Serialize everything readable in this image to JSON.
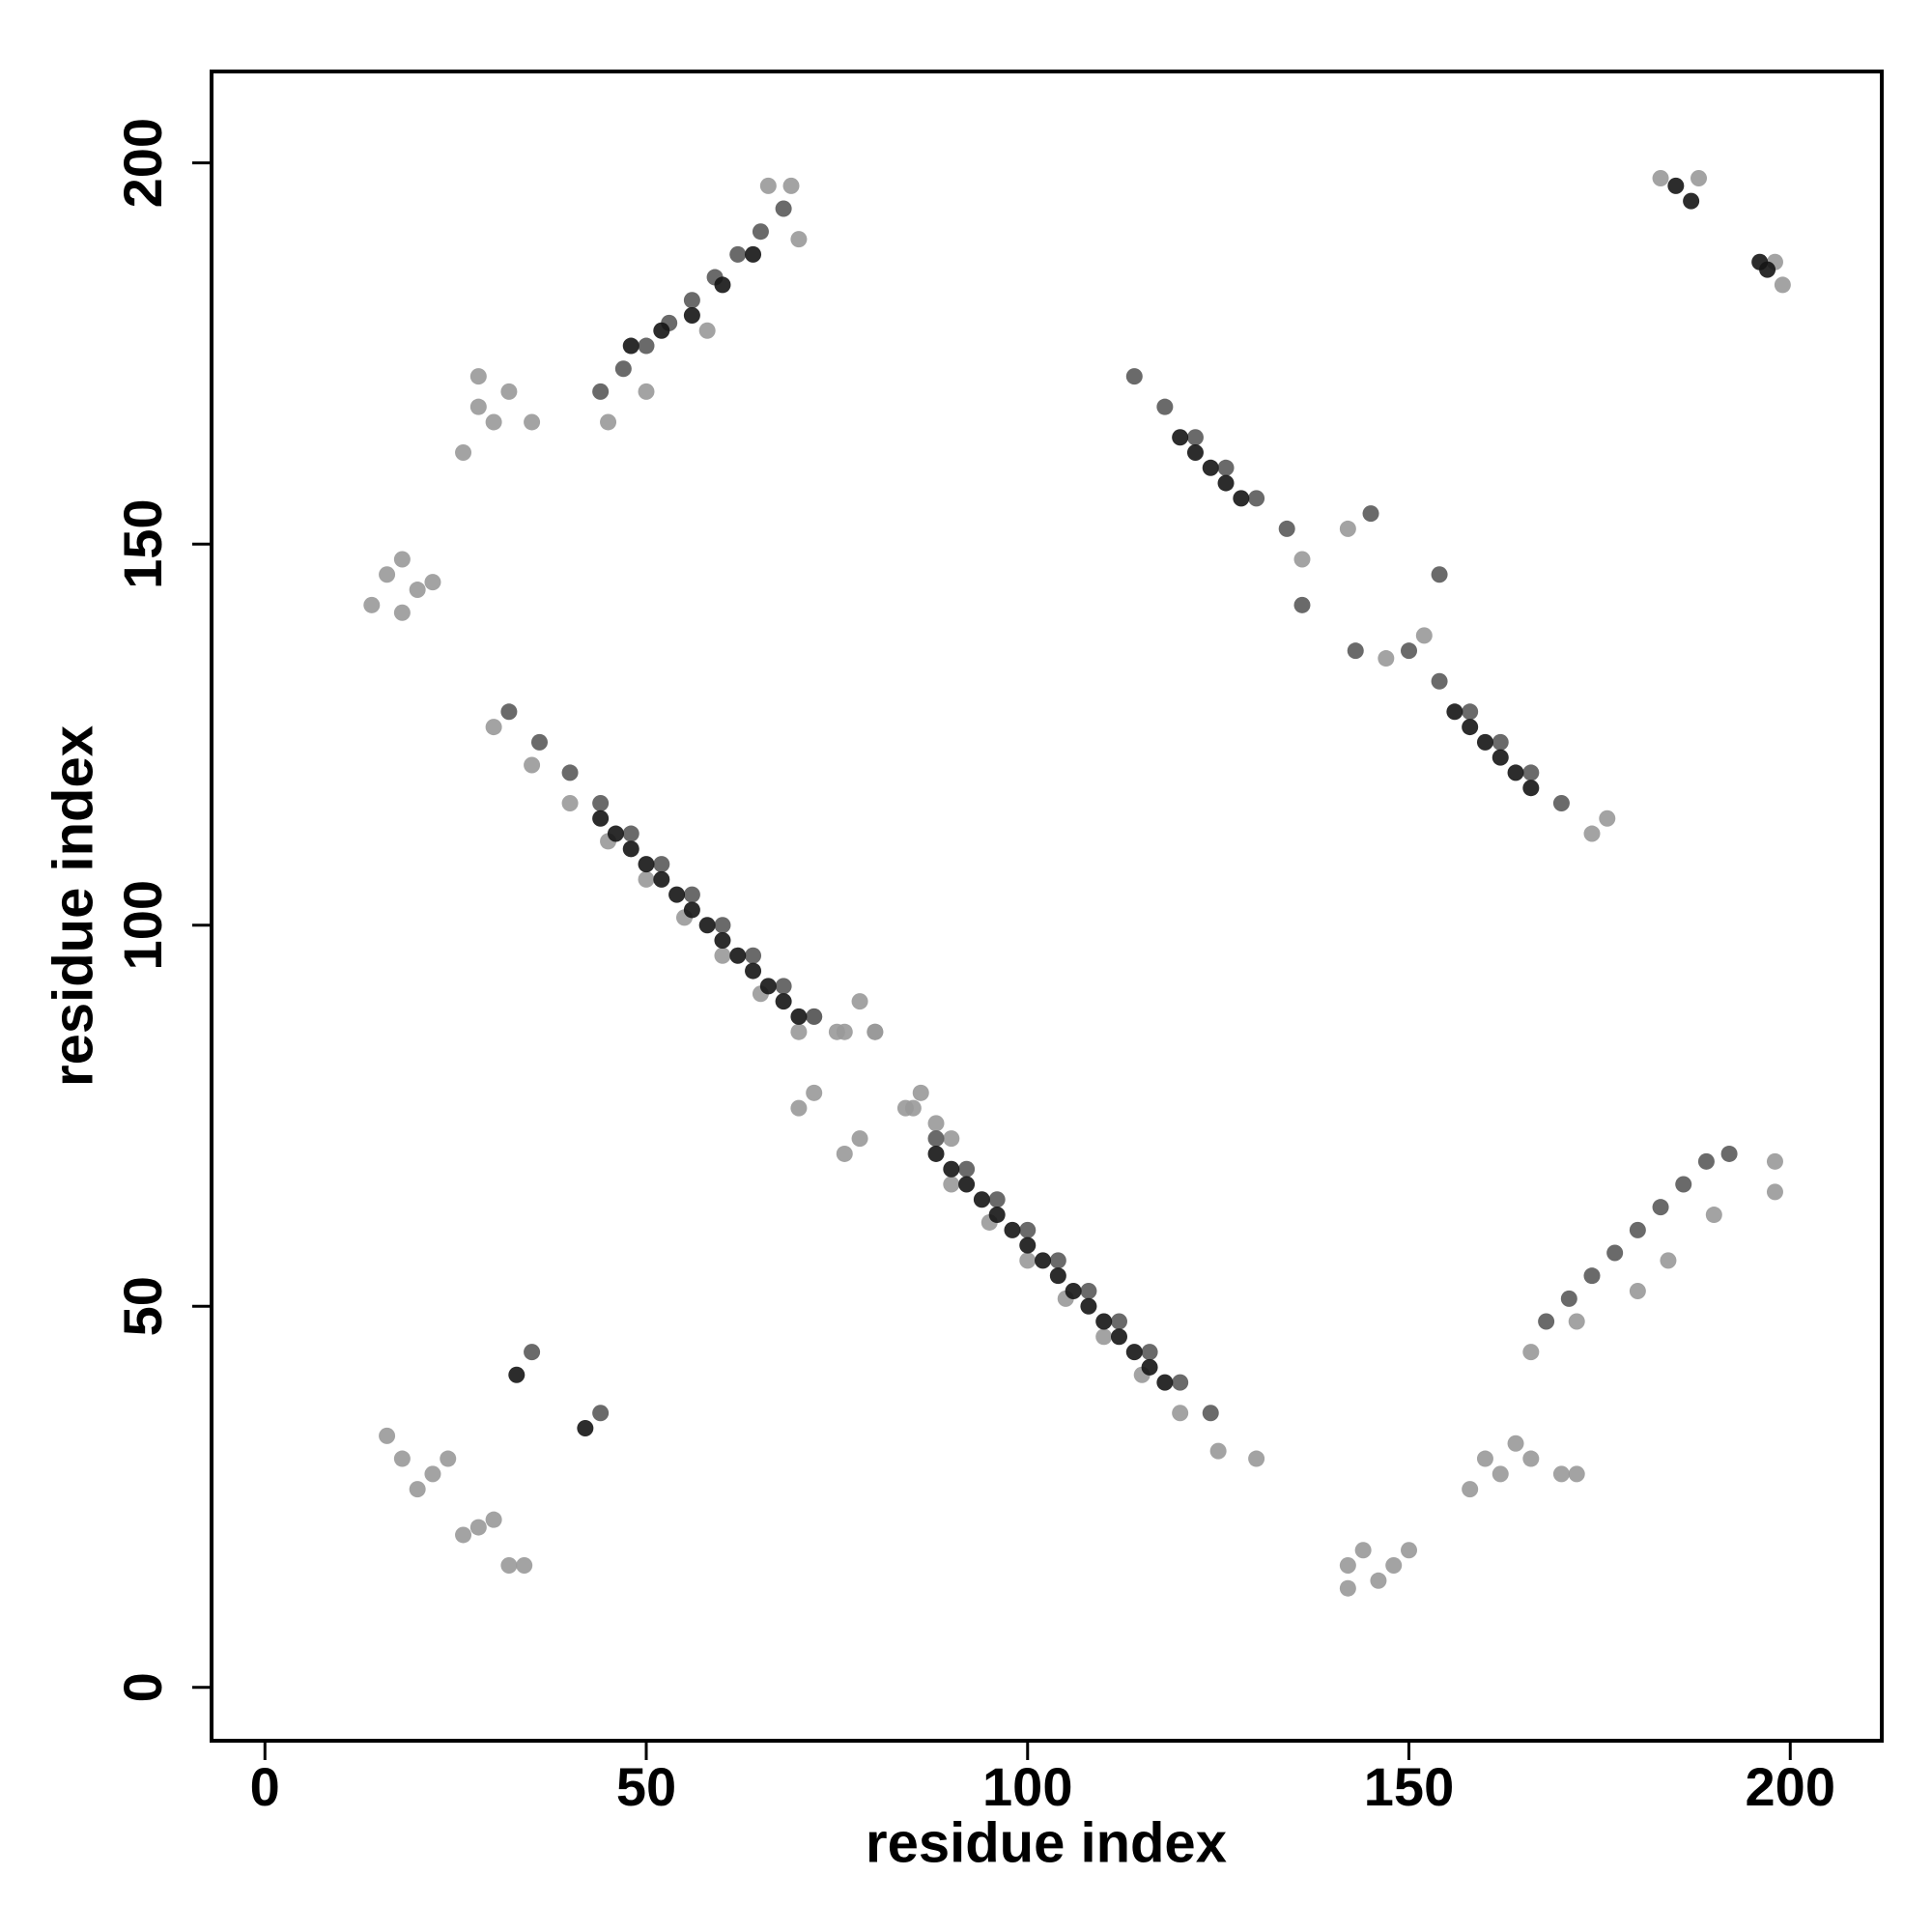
{
  "chart_data": {
    "type": "scatter",
    "xlabel": "residue index",
    "ylabel": "residue index",
    "xlim": [
      -7,
      212
    ],
    "ylim": [
      -7,
      212
    ],
    "xticks": [
      0,
      50,
      100,
      150,
      200
    ],
    "yticks": [
      0,
      50,
      100,
      150,
      200
    ],
    "series": [
      {
        "color": "#999999",
        "x": [
          30,
          35,
          40,
          45,
          50,
          55,
          60,
          65,
          70,
          75,
          80,
          85,
          90,
          95,
          100,
          105,
          110,
          115,
          120,
          125,
          130,
          14,
          16,
          18,
          20,
          18,
          22,
          26,
          28,
          30,
          32,
          35,
          28,
          16,
          18,
          20,
          22,
          24,
          26,
          28,
          30,
          32,
          34,
          142,
          144,
          146,
          148,
          150,
          142,
          158,
          160,
          162,
          164,
          166,
          170,
          172,
          70,
          72,
          76,
          78,
          84,
          86,
          88,
          90,
          72,
          76,
          78,
          80,
          136,
          142,
          152,
          147,
          174,
          176,
          45,
          50,
          58,
          66,
          69,
          70,
          166,
          172,
          180,
          190,
          198,
          198,
          184,
          183,
          188,
          198,
          199
        ],
        "values": [
          126,
          121,
          116,
          111,
          106,
          101,
          96,
          91,
          86,
          86,
          86,
          76,
          66,
          61,
          56,
          51,
          46,
          41,
          36,
          31,
          30,
          142,
          146,
          148,
          144,
          141,
          145,
          162,
          168,
          166,
          170,
          166,
          172,
          33,
          30,
          26,
          28,
          30,
          20,
          21,
          22,
          16,
          16,
          16,
          18,
          14,
          16,
          18,
          13,
          26,
          30,
          28,
          32,
          30,
          28,
          28,
          76,
          78,
          70,
          72,
          76,
          78,
          74,
          72,
          88,
          86,
          90,
          86,
          148,
          152,
          138,
          135,
          112,
          114,
          166,
          170,
          178,
          197,
          197,
          190,
          44,
          48,
          52,
          62,
          65,
          69,
          56,
          198,
          198,
          187,
          184
        ]
      },
      {
        "color": "#5a5a5a",
        "x": [
          32,
          36,
          40,
          44,
          48,
          52,
          56,
          60,
          64,
          68,
          72,
          88,
          92,
          96,
          100,
          104,
          108,
          112,
          116,
          120,
          124,
          114,
          118,
          122,
          126,
          130,
          134,
          150,
          154,
          158,
          162,
          166,
          170,
          44,
          47,
          50,
          53,
          56,
          59,
          62,
          65,
          68,
          168,
          171,
          174,
          177,
          180,
          183,
          186,
          189,
          192,
          35,
          44,
          136,
          145,
          154,
          143
        ],
        "values": [
          128,
          124,
          120,
          116,
          112,
          108,
          104,
          100,
          96,
          92,
          88,
          72,
          68,
          64,
          60,
          56,
          52,
          48,
          44,
          40,
          36,
          172,
          168,
          164,
          160,
          156,
          152,
          136,
          132,
          128,
          124,
          120,
          116,
          170,
          173,
          176,
          179,
          182,
          185,
          188,
          191,
          194,
          48,
          51,
          54,
          57,
          60,
          63,
          66,
          69,
          70,
          44,
          36,
          142,
          154,
          146,
          136
        ]
      },
      {
        "color": "#151515",
        "x": [
          44,
          46,
          48,
          50,
          52,
          54,
          56,
          58,
          60,
          62,
          64,
          66,
          68,
          70,
          88,
          90,
          92,
          94,
          96,
          98,
          100,
          102,
          104,
          106,
          108,
          110,
          112,
          114,
          116,
          118,
          120,
          122,
          124,
          126,
          128,
          156,
          158,
          160,
          162,
          164,
          166,
          48,
          52,
          56,
          60,
          64,
          185,
          187,
          196,
          197,
          33,
          42
        ],
        "values": [
          114,
          112,
          110,
          108,
          106,
          104,
          102,
          100,
          98,
          96,
          94,
          92,
          90,
          88,
          70,
          68,
          66,
          64,
          62,
          60,
          58,
          56,
          54,
          52,
          50,
          48,
          46,
          44,
          42,
          40,
          164,
          162,
          160,
          158,
          156,
          128,
          126,
          124,
          122,
          120,
          118,
          176,
          178,
          180,
          184,
          188,
          197,
          195,
          187,
          186,
          41,
          34
        ]
      }
    ]
  }
}
